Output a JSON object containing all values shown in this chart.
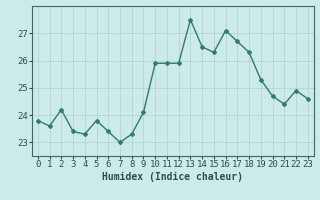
{
  "x": [
    0,
    1,
    2,
    3,
    4,
    5,
    6,
    7,
    8,
    9,
    10,
    11,
    12,
    13,
    14,
    15,
    16,
    17,
    18,
    19,
    20,
    21,
    22,
    23
  ],
  "y": [
    23.8,
    23.6,
    24.2,
    23.4,
    23.3,
    23.8,
    23.4,
    23.0,
    23.3,
    24.1,
    25.9,
    25.9,
    25.9,
    27.5,
    26.5,
    26.3,
    27.1,
    26.7,
    26.3,
    25.3,
    24.7,
    24.4,
    24.9,
    24.6
  ],
  "line_color": "#2e7d6e",
  "marker": "D",
  "marker_size": 2.0,
  "line_width": 1.0,
  "bg_color": "#cceae8",
  "grid_color": "#b0d0ce",
  "xlabel": "Humidex (Indice chaleur)",
  "xlim": [
    -0.5,
    23.5
  ],
  "ylim": [
    22.5,
    28.0
  ],
  "yticks": [
    23,
    24,
    25,
    26,
    27
  ],
  "xticks": [
    0,
    1,
    2,
    3,
    4,
    5,
    6,
    7,
    8,
    9,
    10,
    11,
    12,
    13,
    14,
    15,
    16,
    17,
    18,
    19,
    20,
    21,
    22,
    23
  ],
  "xlabel_fontsize": 7,
  "tick_fontsize": 6.5,
  "axis_color": "#3a6b60",
  "tick_color": "#2e4d47"
}
